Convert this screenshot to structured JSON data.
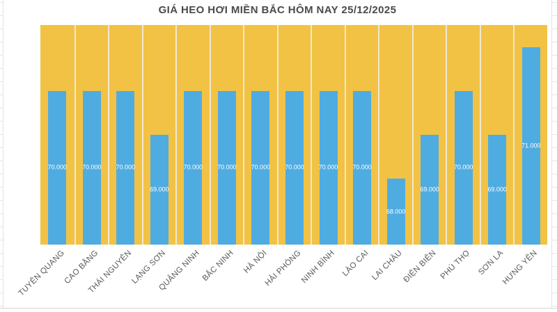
{
  "chart_data": {
    "type": "bar",
    "title": "GIÁ HEO HƠI MIỀN BẮC HÔM NAY 25/12/2025",
    "categories": [
      "TUYÊN QUANG",
      "CAO BẰNG",
      "THÁI NGUYÊN",
      "LẠNG SƠN",
      "QUẢNG NINH",
      "BẮC NINH",
      "HÀ NỘI",
      "HẢI PHÒNG",
      "NINH BÌNH",
      "LÀO CAI",
      "LAI CHÂU",
      "ĐIỆN BIÊN",
      "PHÚ THỌ",
      "SƠN LA",
      "HƯNG YÊN"
    ],
    "values": [
      70000,
      70000,
      70000,
      69000,
      70000,
      70000,
      70000,
      70000,
      70000,
      70000,
      68000,
      69000,
      70000,
      69000,
      71000
    ],
    "value_labels": [
      "70.000",
      "70.000",
      "70.000",
      "69.000",
      "70.000",
      "70.000",
      "70.000",
      "70.000",
      "70.000",
      "70.000",
      "68.000",
      "69.000",
      "70.000",
      "69.000",
      "71.000"
    ],
    "xlabel": "",
    "ylabel": "",
    "ylim": [
      66500,
      71500
    ],
    "grid": false,
    "legend_position": "none",
    "data_label_position": "inside-center",
    "colors": {
      "bar_fill": "#4FACE1",
      "background_column_fill": "#F2C244",
      "column_gap_line": "#F0E8D0",
      "value_label_text": "#FFFFFF",
      "category_label_text": "#595959",
      "title_text": "#4A4A4A",
      "spreadsheet_gridline": "#E2E2E2",
      "chart_border": "#D8D8D8"
    }
  }
}
